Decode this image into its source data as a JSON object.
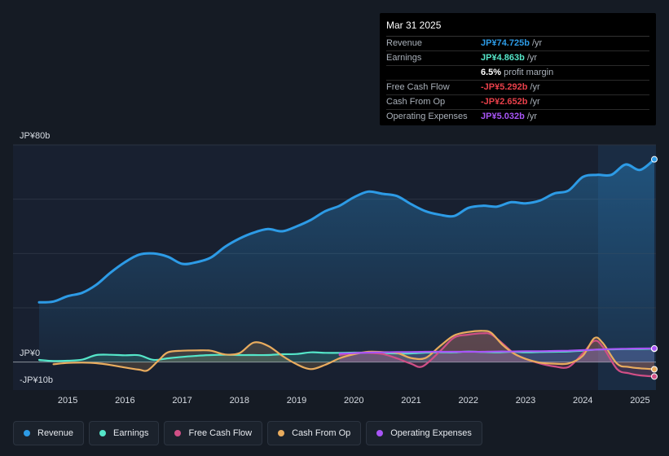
{
  "tooltip": {
    "date": "Mar 31 2025",
    "rows": [
      {
        "label": "Revenue",
        "value": "JP¥74.725b",
        "unit": "/yr",
        "color": "#2d9be6"
      },
      {
        "label": "Earnings",
        "value": "JP¥4.863b",
        "unit": "/yr",
        "color": "#55e6c9"
      },
      {
        "label": "",
        "value": "6.5%",
        "unit": "profit margin",
        "color": "#ffffff"
      },
      {
        "label": "Free Cash Flow",
        "value": "-JP¥5.292b",
        "unit": "/yr",
        "color": "#e8404a"
      },
      {
        "label": "Cash From Op",
        "value": "-JP¥2.652b",
        "unit": "/yr",
        "color": "#e8404a"
      },
      {
        "label": "Operating Expenses",
        "value": "JP¥5.032b",
        "unit": "/yr",
        "color": "#a855f7"
      }
    ]
  },
  "legend": [
    {
      "label": "Revenue",
      "color": "#2d9be6"
    },
    {
      "label": "Earnings",
      "color": "#55e6c9"
    },
    {
      "label": "Free Cash Flow",
      "color": "#d04f86"
    },
    {
      "label": "Cash From Op",
      "color": "#e9ac5e"
    },
    {
      "label": "Operating Expenses",
      "color": "#a855f7"
    }
  ],
  "chart_data": {
    "type": "line",
    "y_unit_label_top": "JP¥80b",
    "y_unit_label_zero": "JP¥0",
    "y_unit_label_bottom": "-JP¥10b",
    "ylim": [
      -10,
      80
    ],
    "xlim": [
      2014.5,
      2025.25
    ],
    "x_ticks": [
      "2015",
      "2016",
      "2017",
      "2018",
      "2019",
      "2020",
      "2021",
      "2022",
      "2023",
      "2024",
      "2025"
    ],
    "series": [
      {
        "name": "Revenue",
        "color": "#2d9be6",
        "points": [
          [
            2014.5,
            22
          ],
          [
            2014.75,
            22.3
          ],
          [
            2015.0,
            24.3
          ],
          [
            2015.25,
            25.5
          ],
          [
            2015.5,
            28.5
          ],
          [
            2015.75,
            33
          ],
          [
            2016.0,
            36.8
          ],
          [
            2016.25,
            39.6
          ],
          [
            2016.5,
            40
          ],
          [
            2016.75,
            38.8
          ],
          [
            2017.0,
            36.2
          ],
          [
            2017.25,
            36.8
          ],
          [
            2017.5,
            38.5
          ],
          [
            2017.75,
            42.5
          ],
          [
            2018.0,
            45.5
          ],
          [
            2018.25,
            47.7
          ],
          [
            2018.5,
            49
          ],
          [
            2018.75,
            48.2
          ],
          [
            2019.0,
            50
          ],
          [
            2019.25,
            52.4
          ],
          [
            2019.5,
            55.6
          ],
          [
            2019.75,
            57.6
          ],
          [
            2020.0,
            60.7
          ],
          [
            2020.25,
            62.8
          ],
          [
            2020.5,
            62
          ],
          [
            2020.75,
            61.2
          ],
          [
            2021.0,
            58.2
          ],
          [
            2021.25,
            55.6
          ],
          [
            2021.5,
            54.3
          ],
          [
            2021.75,
            53.8
          ],
          [
            2022.0,
            56.8
          ],
          [
            2022.25,
            57.6
          ],
          [
            2022.5,
            57.3
          ],
          [
            2022.75,
            58.9
          ],
          [
            2023.0,
            58.5
          ],
          [
            2023.25,
            59.5
          ],
          [
            2023.5,
            62.1
          ],
          [
            2023.75,
            63.2
          ],
          [
            2024.0,
            68.2
          ],
          [
            2024.25,
            69
          ],
          [
            2024.5,
            69
          ],
          [
            2024.75,
            72.8
          ],
          [
            2025.0,
            70.8
          ],
          [
            2025.25,
            74.7
          ]
        ]
      },
      {
        "name": "Earnings",
        "color": "#55e6c9",
        "points": [
          [
            2014.5,
            0.8
          ],
          [
            2014.75,
            0.4
          ],
          [
            2015.0,
            0.5
          ],
          [
            2015.25,
            0.9
          ],
          [
            2015.5,
            2.6
          ],
          [
            2015.75,
            2.7
          ],
          [
            2016.0,
            2.5
          ],
          [
            2016.25,
            2.5
          ],
          [
            2016.5,
            0.8
          ],
          [
            2016.75,
            1.4
          ],
          [
            2017.0,
            1.9
          ],
          [
            2017.25,
            2.3
          ],
          [
            2017.5,
            2.6
          ],
          [
            2017.75,
            2.7
          ],
          [
            2018.0,
            2.6
          ],
          [
            2018.25,
            2.6
          ],
          [
            2018.5,
            2.6
          ],
          [
            2018.75,
            2.9
          ],
          [
            2019.0,
            3.0
          ],
          [
            2019.25,
            3.6
          ],
          [
            2019.5,
            3.4
          ],
          [
            2019.75,
            3.4
          ],
          [
            2020.0,
            3.5
          ],
          [
            2020.25,
            3.5
          ],
          [
            2020.5,
            3.3
          ],
          [
            2020.75,
            3.2
          ],
          [
            2021.0,
            3.2
          ],
          [
            2021.25,
            3.5
          ],
          [
            2021.5,
            3.6
          ],
          [
            2021.75,
            3.6
          ],
          [
            2022.0,
            3.9
          ],
          [
            2022.25,
            3.7
          ],
          [
            2022.5,
            3.6
          ],
          [
            2022.75,
            3.8
          ],
          [
            2023.0,
            3.6
          ],
          [
            2023.25,
            3.7
          ],
          [
            2023.5,
            3.8
          ],
          [
            2023.75,
            3.9
          ],
          [
            2024.0,
            4.2
          ],
          [
            2024.25,
            4.6
          ],
          [
            2024.5,
            4.7
          ],
          [
            2024.75,
            4.8
          ],
          [
            2025.0,
            4.8
          ],
          [
            2025.25,
            4.9
          ]
        ]
      },
      {
        "name": "Free Cash Flow",
        "color": "#d04f86",
        "points": [
          [
            2019.75,
            2.6
          ],
          [
            2020.0,
            3.3
          ],
          [
            2020.25,
            3.4
          ],
          [
            2020.5,
            3.0
          ],
          [
            2020.75,
            1.4
          ],
          [
            2021.0,
            -0.6
          ],
          [
            2021.2,
            -1.6
          ],
          [
            2021.5,
            3.9
          ],
          [
            2021.75,
            9.0
          ],
          [
            2022.0,
            10.1
          ],
          [
            2022.25,
            10.6
          ],
          [
            2022.4,
            10.2
          ],
          [
            2022.6,
            6.8
          ],
          [
            2022.8,
            3.2
          ],
          [
            2023.0,
            1.2
          ],
          [
            2023.25,
            -0.5
          ],
          [
            2023.5,
            -1.6
          ],
          [
            2023.75,
            -1.8
          ],
          [
            2024.0,
            3.2
          ],
          [
            2024.2,
            7.8
          ],
          [
            2024.35,
            5.6
          ],
          [
            2024.6,
            -2.6
          ],
          [
            2024.8,
            -4.1
          ],
          [
            2025.0,
            -4.9
          ],
          [
            2025.25,
            -5.3
          ]
        ]
      },
      {
        "name": "Cash From Op",
        "color": "#e9ac5e",
        "points": [
          [
            2014.75,
            -0.8
          ],
          [
            2015.0,
            -0.3
          ],
          [
            2015.25,
            -0.2
          ],
          [
            2015.5,
            -0.4
          ],
          [
            2015.75,
            -1.1
          ],
          [
            2016.0,
            -2.0
          ],
          [
            2016.25,
            -2.8
          ],
          [
            2016.4,
            -3.0
          ],
          [
            2016.6,
            0.9
          ],
          [
            2016.75,
            3.6
          ],
          [
            2017.0,
            4.2
          ],
          [
            2017.25,
            4.3
          ],
          [
            2017.5,
            4.2
          ],
          [
            2017.75,
            2.8
          ],
          [
            2018.0,
            3.3
          ],
          [
            2018.25,
            7.2
          ],
          [
            2018.5,
            6.0
          ],
          [
            2018.75,
            2.3
          ],
          [
            2019.0,
            -0.8
          ],
          [
            2019.25,
            -2.6
          ],
          [
            2019.5,
            -1.0
          ],
          [
            2019.75,
            1.4
          ],
          [
            2020.0,
            2.9
          ],
          [
            2020.25,
            3.8
          ],
          [
            2020.5,
            3.7
          ],
          [
            2020.75,
            3.4
          ],
          [
            2021.0,
            1.5
          ],
          [
            2021.25,
            1.5
          ],
          [
            2021.5,
            5.8
          ],
          [
            2021.75,
            9.8
          ],
          [
            2022.0,
            11.1
          ],
          [
            2022.25,
            11.5
          ],
          [
            2022.4,
            10.8
          ],
          [
            2022.6,
            6.3
          ],
          [
            2022.8,
            3.1
          ],
          [
            2023.0,
            1.2
          ],
          [
            2023.25,
            -0.2
          ],
          [
            2023.5,
            -0.6
          ],
          [
            2023.75,
            -0.5
          ],
          [
            2024.0,
            2.3
          ],
          [
            2024.2,
            8.8
          ],
          [
            2024.35,
            7.0
          ],
          [
            2024.6,
            -0.6
          ],
          [
            2024.8,
            -1.8
          ],
          [
            2025.0,
            -2.3
          ],
          [
            2025.25,
            -2.65
          ]
        ]
      },
      {
        "name": "Operating Expenses",
        "color": "#a855f7",
        "points": [
          [
            2019.75,
            3.1
          ],
          [
            2020.0,
            3.3
          ],
          [
            2020.25,
            3.5
          ],
          [
            2020.5,
            3.6
          ],
          [
            2020.75,
            3.7
          ],
          [
            2021.0,
            3.7
          ],
          [
            2021.25,
            3.8
          ],
          [
            2021.5,
            3.8
          ],
          [
            2021.75,
            3.8
          ],
          [
            2022.0,
            3.8
          ],
          [
            2022.25,
            3.8
          ],
          [
            2022.5,
            3.9
          ],
          [
            2022.75,
            3.9
          ],
          [
            2023.0,
            4.0
          ],
          [
            2023.25,
            4.0
          ],
          [
            2023.5,
            4.1
          ],
          [
            2023.75,
            4.2
          ],
          [
            2024.0,
            4.4
          ],
          [
            2024.25,
            4.6
          ],
          [
            2024.5,
            4.8
          ],
          [
            2024.75,
            4.9
          ],
          [
            2025.0,
            5.0
          ],
          [
            2025.25,
            5.03
          ]
        ]
      }
    ]
  }
}
